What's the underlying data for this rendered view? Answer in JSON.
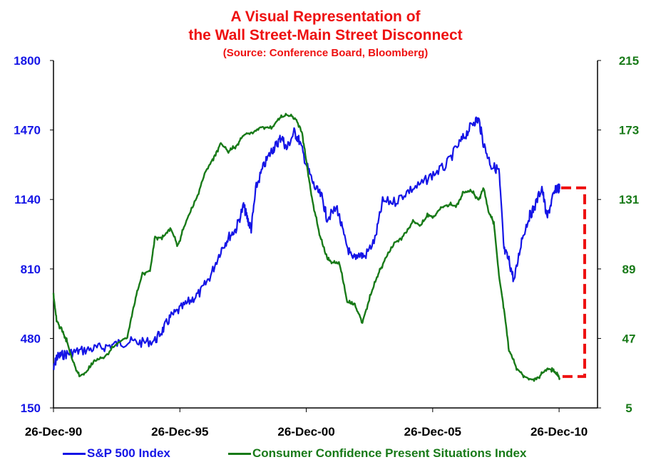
{
  "chart_data": {
    "type": "line",
    "title": "A Visual Representation of",
    "title_line2": "the Wall Street-Main Street Disconnect",
    "subtitle": "(Source: Conference Board, Bloomberg)",
    "x_tick_labels": [
      "26-Dec-90",
      "26-Dec-95",
      "26-Dec-00",
      "26-Dec-05",
      "26-Dec-10"
    ],
    "x_range": [
      1990.98,
      2012.5
    ],
    "y_left": {
      "min": 150,
      "max": 1800,
      "ticks": [
        "150",
        "480",
        "810",
        "1140",
        "1470",
        "1800"
      ],
      "color": "#1515e6"
    },
    "y_right": {
      "min": 5,
      "max": 215,
      "ticks": [
        "5",
        "47",
        "89",
        "131",
        "173",
        "215"
      ],
      "color": "#187a18"
    },
    "grid": false,
    "legend_position": "bottom",
    "series": [
      {
        "name": "S&P 500 Index",
        "axis": "left",
        "color": "#1515e6",
        "x": [
          1990.98,
          1991.1,
          1991.3,
          1991.6,
          1992.0,
          1992.5,
          1993.0,
          1993.5,
          1994.0,
          1994.5,
          1995.0,
          1995.3,
          1995.6,
          1996.0,
          1996.4,
          1996.8,
          1997.2,
          1997.6,
          1997.9,
          1998.2,
          1998.5,
          1998.65,
          1998.8,
          1999.0,
          1999.3,
          1999.6,
          1999.8,
          2000.0,
          2000.2,
          2000.5,
          2000.7,
          2001.0,
          2001.3,
          2001.6,
          2001.8,
          2002.2,
          2002.5,
          2002.8,
          2003.0,
          2003.3,
          2003.7,
          2004.0,
          2004.5,
          2005.0,
          2005.5,
          2006.0,
          2006.5,
          2007.0,
          2007.3,
          2007.6,
          2007.8,
          2008.0,
          2008.3,
          2008.6,
          2008.8,
          2009.0,
          2009.2,
          2009.5,
          2009.8,
          2010.0,
          2010.3,
          2010.5,
          2010.7,
          2010.9,
          2011.0
        ],
        "values": [
          330,
          390,
          400,
          410,
          420,
          430,
          440,
          455,
          465,
          460,
          470,
          520,
          580,
          620,
          660,
          700,
          780,
          900,
          960,
          1000,
          1110,
          1050,
          1000,
          1200,
          1300,
          1370,
          1400,
          1440,
          1380,
          1460,
          1420,
          1300,
          1200,
          1150,
          1050,
          1100,
          950,
          850,
          880,
          870,
          950,
          1130,
          1130,
          1180,
          1210,
          1260,
          1300,
          1400,
          1450,
          1510,
          1520,
          1400,
          1300,
          1280,
          900,
          850,
          750,
          950,
          1060,
          1100,
          1200,
          1050,
          1140,
          1200,
          1190
        ]
      },
      {
        "name": "Consumer Confidence Present Situations Index",
        "axis": "right",
        "color": "#187a18",
        "x": [
          1990.98,
          1991.1,
          1991.3,
          1991.5,
          1991.7,
          1992.0,
          1992.3,
          1992.6,
          1993.0,
          1993.5,
          1993.9,
          1994.2,
          1994.5,
          1994.8,
          1995.0,
          1995.3,
          1995.6,
          1995.9,
          1996.2,
          1996.6,
          1997.0,
          1997.3,
          1997.6,
          1997.9,
          1998.2,
          1998.5,
          1998.9,
          1999.2,
          1999.6,
          1999.9,
          2000.2,
          2000.5,
          2000.8,
          2001.0,
          2001.2,
          2001.5,
          2001.8,
          2002.0,
          2002.3,
          2002.6,
          2002.9,
          2003.2,
          2003.5,
          2003.8,
          2004.1,
          2004.5,
          2004.9,
          2005.2,
          2005.5,
          2005.8,
          2006.0,
          2006.3,
          2006.6,
          2006.9,
          2007.2,
          2007.5,
          2007.8,
          2008.0,
          2008.2,
          2008.4,
          2008.6,
          2008.8,
          2009.0,
          2009.3,
          2009.6,
          2009.9,
          2010.2,
          2010.5,
          2010.7,
          2010.9,
          2011.0
        ],
        "values": [
          73,
          58,
          52,
          46,
          35,
          24,
          27,
          33,
          36,
          44,
          48,
          70,
          86,
          88,
          108,
          108,
          114,
          103,
          117,
          130,
          148,
          156,
          165,
          160,
          163,
          170,
          172,
          175,
          174,
          180,
          182,
          181,
          173,
          152,
          132,
          110,
          95,
          93,
          92,
          69,
          67,
          57,
          72,
          85,
          95,
          105,
          110,
          118,
          115,
          122,
          120,
          126,
          128,
          127,
          135,
          136,
          131,
          138,
          123,
          117,
          85,
          65,
          40,
          29,
          24,
          22,
          24,
          29,
          28,
          25,
          23
        ]
      }
    ],
    "annotation": {
      "type": "bracket",
      "color": "#ee1111",
      "style": "dashed",
      "from_left_value": 1195,
      "to_right_value": 24
    }
  }
}
